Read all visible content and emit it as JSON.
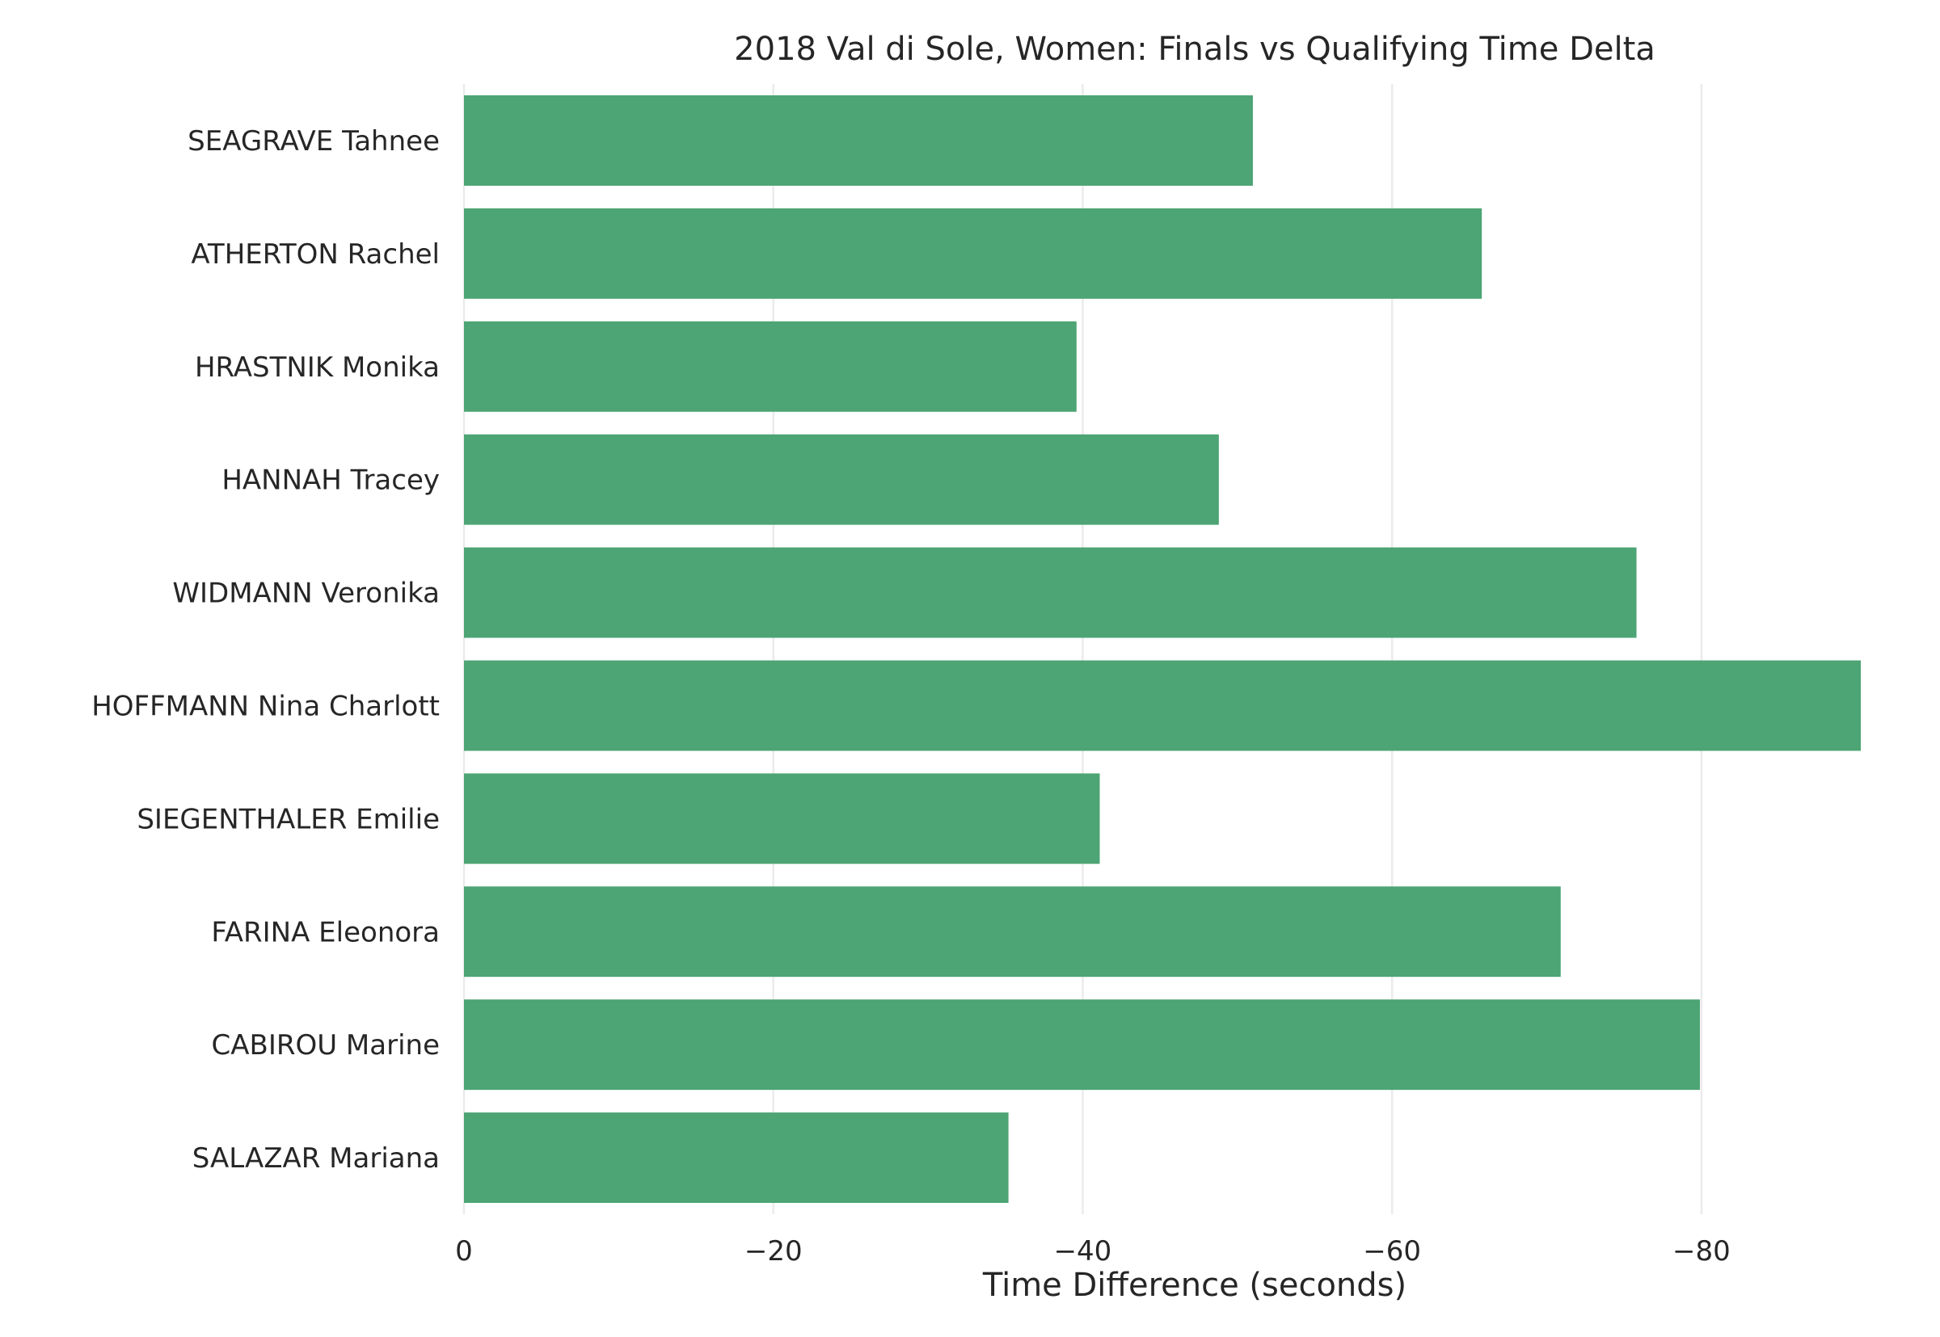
{
  "chart_data": {
    "type": "bar",
    "orientation": "horizontal",
    "title": "2018 Val di Sole, Women: Finals vs Qualifying Time Delta",
    "xlabel": "Time Difference (seconds)",
    "ylabel": "",
    "categories": [
      "SEAGRAVE Tahnee",
      "ATHERTON Rachel",
      "HRASTNIK Monika",
      "HANNAH Tracey",
      "WIDMANN Veronika",
      "HOFFMANN Nina Charlott",
      "SIEGENTHALER Emilie",
      "FARINA Eleonora",
      "CABIROU Marine",
      "SALAZAR Mariana"
    ],
    "values": [
      -51.0,
      -65.8,
      -39.6,
      -48.8,
      -75.8,
      -90.3,
      -41.1,
      -70.9,
      -79.9,
      -35.2
    ],
    "xlim": [
      0,
      -90.3
    ],
    "xaxis_inverted": true,
    "xticks": [
      0,
      -20,
      -40,
      -60,
      -80
    ],
    "xtick_labels": [
      "0",
      "−20",
      "−40",
      "−60",
      "−80"
    ],
    "grid": true,
    "bar_color": "#4da474",
    "grid_color": "#ebebeb",
    "text_color": "#262626"
  }
}
